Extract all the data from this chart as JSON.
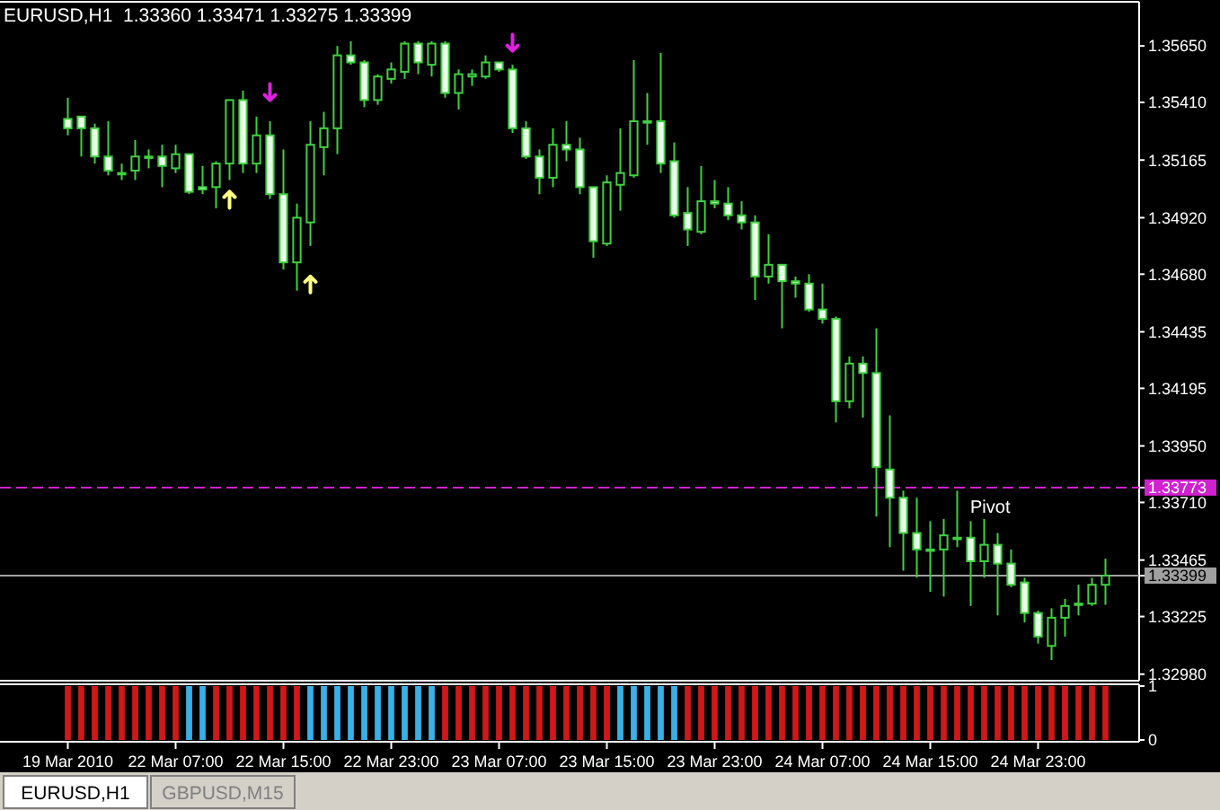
{
  "chart_data": [
    {
      "type": "candlestick",
      "title": "EURUSD,H1  1.33360 1.33471 1.33275 1.33399",
      "categories": [
        "19 Mar 2010",
        null,
        null,
        null,
        null,
        null,
        null,
        null,
        "22 Mar 07:00",
        null,
        null,
        null,
        null,
        null,
        null,
        null,
        "22 Mar 15:00",
        null,
        null,
        null,
        null,
        null,
        null,
        null,
        "22 Mar 23:00",
        null,
        null,
        null,
        null,
        null,
        null,
        null,
        "23 Mar 07:00",
        null,
        null,
        null,
        null,
        null,
        null,
        null,
        "23 Mar 15:00",
        null,
        null,
        null,
        null,
        null,
        null,
        null,
        "23 Mar 23:00",
        null,
        null,
        null,
        null,
        null,
        null,
        null,
        "24 Mar 07:00",
        null,
        null,
        null,
        null,
        null,
        null,
        null,
        "24 Mar 15:00",
        null,
        null,
        null,
        null,
        null,
        null,
        null,
        "24 Mar 23:00",
        null,
        null,
        null,
        null,
        null
      ],
      "ylim": [
        1.3296,
        1.3583
      ],
      "yticks": [
        {
          "value": 1.3565,
          "label": "1.35650"
        },
        {
          "value": 1.3541,
          "label": "1.35410"
        },
        {
          "value": 1.35165,
          "label": "1.35165"
        },
        {
          "value": 1.3492,
          "label": "1.34920"
        },
        {
          "value": 1.3468,
          "label": "1.34680"
        },
        {
          "value": 1.34435,
          "label": "1.34435"
        },
        {
          "value": 1.34195,
          "label": "1.34195"
        },
        {
          "value": 1.3395,
          "label": "1.33950"
        },
        {
          "value": 1.3371,
          "label": "1.33710"
        },
        {
          "value": 1.33465,
          "label": "1.33465"
        },
        {
          "value": 1.33225,
          "label": "1.33225"
        },
        {
          "value": 1.3298,
          "label": "1.32980"
        },
        {
          "value": 1.33773,
          "label": "1.33773"
        },
        {
          "value": 1.33399,
          "label": "1.33399"
        }
      ],
      "series": [
        {
          "color": "#40d040",
          "ohlc": [
            [
              1.3534,
              1.3543,
              1.3527,
              1.353
            ],
            [
              1.3535,
              1.3535,
              1.3518,
              1.353
            ],
            [
              1.353,
              1.3532,
              1.3515,
              1.3518
            ],
            [
              1.3518,
              1.3533,
              1.351,
              1.3512
            ],
            [
              1.3511,
              1.3515,
              1.3508,
              1.3511
            ],
            [
              1.3512,
              1.3525,
              1.3508,
              1.3518
            ],
            [
              1.3518,
              1.3521,
              1.3513,
              1.3518
            ],
            [
              1.3518,
              1.3523,
              1.3505,
              1.3514
            ],
            [
              1.3513,
              1.3523,
              1.3511,
              1.3519
            ],
            [
              1.3519,
              1.3519,
              1.3502,
              1.3503
            ],
            [
              1.3505,
              1.3514,
              1.3502,
              1.3504
            ],
            [
              1.3505,
              1.3516,
              1.3496,
              1.3515
            ],
            [
              1.3515,
              1.3542,
              1.3508,
              1.3542
            ],
            [
              1.3542,
              1.3546,
              1.3511,
              1.3515
            ],
            [
              1.3515,
              1.3535,
              1.3511,
              1.3527
            ],
            [
              1.3527,
              1.3533,
              1.35,
              1.3502
            ],
            [
              1.3502,
              1.3521,
              1.347,
              1.3473
            ],
            [
              1.3473,
              1.3498,
              1.3461,
              1.3492
            ],
            [
              1.349,
              1.3533,
              1.348,
              1.3523
            ],
            [
              1.3522,
              1.3537,
              1.351,
              1.353
            ],
            [
              1.353,
              1.3565,
              1.3519,
              1.3561
            ],
            [
              1.3561,
              1.3567,
              1.3557,
              1.3558
            ],
            [
              1.3558,
              1.3559,
              1.3539,
              1.3542
            ],
            [
              1.3542,
              1.3553,
              1.354,
              1.3552
            ],
            [
              1.3551,
              1.3558,
              1.3549,
              1.3555
            ],
            [
              1.3554,
              1.3567,
              1.3551,
              1.3566
            ],
            [
              1.3566,
              1.3567,
              1.3553,
              1.3558
            ],
            [
              1.3557,
              1.3567,
              1.3552,
              1.3566
            ],
            [
              1.3566,
              1.3567,
              1.3543,
              1.3545
            ],
            [
              1.3545,
              1.3555,
              1.3538,
              1.3553
            ],
            [
              1.3552,
              1.3555,
              1.3548,
              1.3553
            ],
            [
              1.3552,
              1.3561,
              1.3551,
              1.3558
            ],
            [
              1.3558,
              1.3558,
              1.3554,
              1.3555
            ],
            [
              1.3555,
              1.3557,
              1.3528,
              1.353
            ],
            [
              1.353,
              1.3533,
              1.3517,
              1.3518
            ],
            [
              1.3518,
              1.3521,
              1.3502,
              1.3509
            ],
            [
              1.3509,
              1.353,
              1.3505,
              1.3523
            ],
            [
              1.3523,
              1.3533,
              1.3516,
              1.3521
            ],
            [
              1.3521,
              1.3526,
              1.3502,
              1.3505
            ],
            [
              1.3505,
              1.3505,
              1.3475,
              1.3482
            ],
            [
              1.3481,
              1.351,
              1.348,
              1.3507
            ],
            [
              1.3506,
              1.353,
              1.3495,
              1.3511
            ],
            [
              1.351,
              1.3559,
              1.3509,
              1.3533
            ],
            [
              1.3533,
              1.3545,
              1.3523,
              1.3533
            ],
            [
              1.3533,
              1.3562,
              1.3511,
              1.3515
            ],
            [
              1.3516,
              1.3524,
              1.3492,
              1.3493
            ],
            [
              1.3494,
              1.3505,
              1.348,
              1.3487
            ],
            [
              1.3486,
              1.3514,
              1.3485,
              1.3499
            ],
            [
              1.3499,
              1.3508,
              1.3496,
              1.3498
            ],
            [
              1.3498,
              1.3505,
              1.3491,
              1.3493
            ],
            [
              1.3493,
              1.3499,
              1.3487,
              1.349
            ],
            [
              1.349,
              1.3493,
              1.3457,
              1.3467
            ],
            [
              1.3467,
              1.3485,
              1.3464,
              1.3472
            ],
            [
              1.3472,
              1.3472,
              1.3445,
              1.3465
            ],
            [
              1.3465,
              1.3467,
              1.3458,
              1.3464
            ],
            [
              1.3464,
              1.3468,
              1.3452,
              1.3453
            ],
            [
              1.3453,
              1.3464,
              1.3447,
              1.3449
            ],
            [
              1.3449,
              1.345,
              1.3405,
              1.3414
            ],
            [
              1.3414,
              1.3433,
              1.3411,
              1.343
            ],
            [
              1.343,
              1.3433,
              1.3407,
              1.3426
            ],
            [
              1.3426,
              1.3445,
              1.3365,
              1.3386
            ],
            [
              1.3385,
              1.3408,
              1.3352,
              1.3373
            ],
            [
              1.3373,
              1.3376,
              1.3342,
              1.3358
            ],
            [
              1.3358,
              1.3373,
              1.3339,
              1.3351
            ],
            [
              1.3351,
              1.3363,
              1.3333,
              1.3351
            ],
            [
              1.3351,
              1.3364,
              1.3331,
              1.3357
            ],
            [
              1.3356,
              1.3376,
              1.3352,
              1.3356
            ],
            [
              1.3356,
              1.3363,
              1.3327,
              1.3346
            ],
            [
              1.3346,
              1.3364,
              1.3339,
              1.3353
            ],
            [
              1.3353,
              1.3358,
              1.3323,
              1.3345
            ],
            [
              1.3345,
              1.3351,
              1.3335,
              1.3336
            ],
            [
              1.3337,
              1.3339,
              1.332,
              1.3324
            ],
            [
              1.3324,
              1.3325,
              1.3311,
              1.3314
            ],
            [
              1.331,
              1.3326,
              1.3304,
              1.3322
            ],
            [
              1.3322,
              1.333,
              1.3314,
              1.3327
            ],
            [
              1.3328,
              1.3336,
              1.3323,
              1.3328
            ],
            [
              1.3328,
              1.3339,
              1.3327,
              1.3336
            ],
            [
              1.3336,
              1.33471,
              1.33275,
              1.33399
            ]
          ]
        },
        {
          "type": "scatter",
          "color": "#ffff80",
          "values": [
            null,
            null,
            null,
            null,
            null,
            null,
            null,
            null,
            null,
            null,
            null,
            null,
            1.35,
            null,
            null,
            null,
            null,
            null,
            1.3464,
            null,
            null,
            null,
            null,
            null,
            null,
            null,
            null,
            null,
            null,
            null,
            null,
            null,
            null,
            null,
            null,
            null,
            null,
            null,
            null,
            null,
            null,
            null,
            null,
            null,
            null,
            null,
            null,
            null,
            null,
            null,
            null,
            null,
            null,
            null,
            null,
            null,
            null,
            null,
            null,
            null,
            null,
            null,
            null,
            null,
            null,
            null,
            null,
            null,
            null,
            null,
            null,
            null,
            null,
            null,
            null,
            null,
            null,
            null
          ]
        },
        {
          "type": "scatter",
          "color": "#e020e0",
          "values": [
            null,
            null,
            null,
            null,
            null,
            null,
            null,
            null,
            null,
            null,
            null,
            null,
            null,
            null,
            null,
            1.3545,
            null,
            null,
            null,
            null,
            null,
            null,
            null,
            null,
            null,
            null,
            null,
            null,
            null,
            null,
            null,
            null,
            null,
            1.3566,
            null,
            null,
            null,
            null,
            null,
            null,
            null,
            null,
            null,
            null,
            null,
            null,
            null,
            null,
            null,
            null,
            null,
            null,
            null,
            null,
            null,
            null,
            null,
            null,
            null,
            null,
            null,
            null,
            null,
            null,
            null,
            null,
            null,
            null,
            null,
            null,
            null,
            null,
            null,
            null,
            null,
            null,
            null,
            null
          ]
        }
      ],
      "ref_lines": [
        {
          "axis": "y",
          "value": 1.33773,
          "label": "Pivot",
          "color": "#d020d0",
          "line_style": "dashed"
        },
        {
          "axis": "y",
          "value": 1.33399,
          "color": "#a0a0a0"
        }
      ]
    },
    {
      "type": "bar",
      "values": [
        1,
        1,
        1,
        1,
        1,
        1,
        1,
        1,
        1,
        1,
        1,
        1,
        1,
        1,
        1,
        1,
        1,
        1,
        1,
        1,
        1,
        1,
        1,
        1,
        1,
        1,
        1,
        1,
        1,
        1,
        1,
        1,
        1,
        1,
        1,
        1,
        1,
        1,
        1,
        1,
        1,
        1,
        1,
        1,
        1,
        1,
        1,
        1,
        1,
        1,
        1,
        1,
        1,
        1,
        1,
        1,
        1,
        1,
        1,
        1,
        1,
        1,
        1,
        1,
        1,
        1,
        1,
        1,
        1,
        1,
        1,
        1,
        1,
        1,
        1,
        1,
        1,
        1
      ],
      "colors": [
        "#d01818",
        "#d01818",
        "#d01818",
        "#d01818",
        "#d01818",
        "#d01818",
        "#d01818",
        "#d01818",
        "#d01818",
        "#38b0e8",
        "#38b0e8",
        "#d01818",
        "#d01818",
        "#d01818",
        "#d01818",
        "#d01818",
        "#d01818",
        "#d01818",
        "#38b0e8",
        "#38b0e8",
        "#38b0e8",
        "#38b0e8",
        "#38b0e8",
        "#38b0e8",
        "#38b0e8",
        "#38b0e8",
        "#38b0e8",
        "#38b0e8",
        "#d01818",
        "#d01818",
        "#d01818",
        "#d01818",
        "#d01818",
        "#d01818",
        "#d01818",
        "#d01818",
        "#d01818",
        "#d01818",
        "#d01818",
        "#d01818",
        "#d01818",
        "#38b0e8",
        "#38b0e8",
        "#38b0e8",
        "#38b0e8",
        "#38b0e8",
        "#d01818",
        "#d01818",
        "#d01818",
        "#d01818",
        "#d01818",
        "#d01818",
        "#d01818",
        "#d01818",
        "#d01818",
        "#d01818",
        "#d01818",
        "#d01818",
        "#d01818",
        "#d01818",
        "#d01818",
        "#d01818",
        "#d01818",
        "#d01818",
        "#d01818",
        "#d01818",
        "#d01818",
        "#d01818",
        "#d01818",
        "#d01818",
        "#d01818",
        "#d01818",
        "#d01818",
        "#d01818",
        "#d01818",
        "#d01818",
        "#d01818",
        "#d01818"
      ],
      "ylim": [
        0,
        1
      ],
      "yticks": [
        0,
        1
      ],
      "tick_labels": "y",
      "annotations": [
        "EURUSD,H1",
        "GBPUSD,M15"
      ]
    }
  ]
}
